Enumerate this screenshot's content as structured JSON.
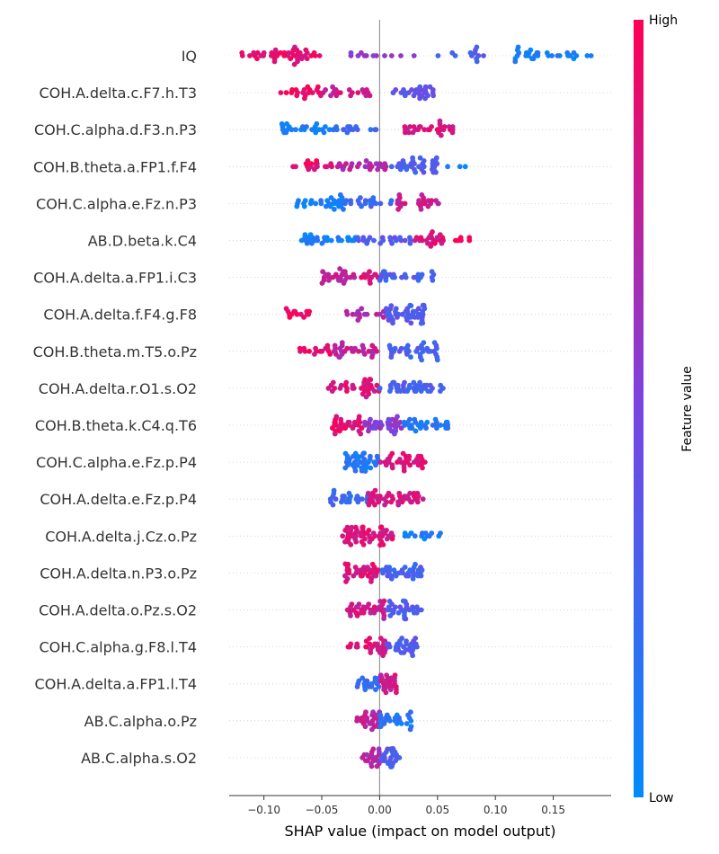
{
  "chart_data": {
    "type": "scatter",
    "subtype": "shap-beeswarm",
    "title": "",
    "xlabel": "SHAP value (impact on model output)",
    "xlim": [
      -0.13,
      0.2
    ],
    "xticks": [
      -0.1,
      -0.05,
      0.0,
      0.05,
      0.1,
      0.15
    ],
    "xtick_labels": [
      "−0.10",
      "−0.05",
      "0.00",
      "0.05",
      "0.10",
      "0.15"
    ],
    "colorbar": {
      "label": "Feature value",
      "high": "High",
      "low": "Low",
      "high_color": "#ff0052",
      "low_color": "#008bfb"
    },
    "zero_line_color": "#999999",
    "features": [
      {
        "name": "IQ",
        "ranges": [
          {
            "from": -0.12,
            "to": -0.05,
            "v": 0.9,
            "n": 45
          },
          {
            "from": -0.03,
            "to": 0.03,
            "v": 0.55,
            "n": 12
          },
          {
            "from": 0.05,
            "to": 0.1,
            "v": 0.3,
            "n": 12
          },
          {
            "from": 0.11,
            "to": 0.185,
            "v": 0.08,
            "n": 30
          }
        ]
      },
      {
        "name": "COH.A.delta.c.F7.h.T3",
        "ranges": [
          {
            "from": -0.087,
            "to": -0.05,
            "v": 0.92,
            "n": 20
          },
          {
            "from": -0.05,
            "to": 0.0,
            "v": 0.8,
            "n": 20
          },
          {
            "from": 0.01,
            "to": 0.047,
            "v": 0.4,
            "n": 28
          }
        ]
      },
      {
        "name": "COH.C.alpha.d.F3.n.P3",
        "ranges": [
          {
            "from": -0.085,
            "to": -0.04,
            "v": 0.1,
            "n": 25
          },
          {
            "from": -0.04,
            "to": 0.0,
            "v": 0.25,
            "n": 15
          },
          {
            "from": 0.015,
            "to": 0.065,
            "v": 0.85,
            "n": 30
          }
        ]
      },
      {
        "name": "COH.B.theta.a.FP1.f.F4",
        "ranges": [
          {
            "from": -0.075,
            "to": -0.04,
            "v": 0.92,
            "n": 18
          },
          {
            "from": -0.04,
            "to": 0.01,
            "v": 0.7,
            "n": 25
          },
          {
            "from": 0.01,
            "to": 0.05,
            "v": 0.3,
            "n": 35
          },
          {
            "from": 0.05,
            "to": 0.082,
            "v": 0.1,
            "n": 3
          }
        ]
      },
      {
        "name": "COH.C.alpha.e.Fz.n.P3",
        "ranges": [
          {
            "from": -0.075,
            "to": -0.03,
            "v": 0.1,
            "n": 28
          },
          {
            "from": -0.03,
            "to": 0.015,
            "v": 0.25,
            "n": 20
          },
          {
            "from": 0.015,
            "to": 0.055,
            "v": 0.8,
            "n": 25
          }
        ]
      },
      {
        "name": "AB.D.beta.k.C4",
        "ranges": [
          {
            "from": -0.068,
            "to": -0.02,
            "v": 0.1,
            "n": 28
          },
          {
            "from": -0.02,
            "to": 0.03,
            "v": 0.35,
            "n": 22
          },
          {
            "from": 0.03,
            "to": 0.055,
            "v": 0.85,
            "n": 22
          },
          {
            "from": 0.065,
            "to": 0.078,
            "v": 0.95,
            "n": 6
          }
        ]
      },
      {
        "name": "COH.A.delta.a.FP1.i.C3",
        "ranges": [
          {
            "from": -0.05,
            "to": -0.02,
            "v": 0.75,
            "n": 25
          },
          {
            "from": -0.02,
            "to": 0.0,
            "v": 0.85,
            "n": 12
          },
          {
            "from": 0.0,
            "to": 0.05,
            "v": 0.3,
            "n": 25
          }
        ]
      },
      {
        "name": "COH.A.delta.f.F4.g.F8",
        "ranges": [
          {
            "from": -0.085,
            "to": -0.06,
            "v": 0.95,
            "n": 14
          },
          {
            "from": -0.035,
            "to": 0.005,
            "v": 0.7,
            "n": 15
          },
          {
            "from": 0.005,
            "to": 0.04,
            "v": 0.35,
            "n": 45
          }
        ]
      },
      {
        "name": "COH.B.theta.m.T5.o.Pz",
        "ranges": [
          {
            "from": -0.07,
            "to": -0.04,
            "v": 0.92,
            "n": 15
          },
          {
            "from": -0.04,
            "to": 0.0,
            "v": 0.75,
            "n": 30
          },
          {
            "from": 0.005,
            "to": 0.05,
            "v": 0.3,
            "n": 35
          }
        ]
      },
      {
        "name": "COH.A.delta.r.O1.s.O2",
        "ranges": [
          {
            "from": -0.045,
            "to": 0.0,
            "v": 0.85,
            "n": 35
          },
          {
            "from": 0.0,
            "to": 0.055,
            "v": 0.3,
            "n": 40
          }
        ]
      },
      {
        "name": "COH.B.theta.k.C4.q.T6",
        "ranges": [
          {
            "from": -0.042,
            "to": -0.015,
            "v": 0.9,
            "n": 30
          },
          {
            "from": -0.015,
            "to": 0.02,
            "v": 0.55,
            "n": 35
          },
          {
            "from": 0.02,
            "to": 0.06,
            "v": 0.15,
            "n": 30
          }
        ]
      },
      {
        "name": "COH.C.alpha.e.Fz.p.P4",
        "ranges": [
          {
            "from": -0.03,
            "to": 0.0,
            "v": 0.15,
            "n": 40
          },
          {
            "from": 0.0,
            "to": 0.04,
            "v": 0.85,
            "n": 35
          }
        ]
      },
      {
        "name": "COH.A.delta.e.Fz.p.P4",
        "ranges": [
          {
            "from": -0.043,
            "to": -0.01,
            "v": 0.25,
            "n": 25
          },
          {
            "from": -0.01,
            "to": 0.038,
            "v": 0.82,
            "n": 45
          }
        ]
      },
      {
        "name": "COH.A.delta.j.Cz.o.Pz",
        "ranges": [
          {
            "from": -0.032,
            "to": 0.012,
            "v": 0.85,
            "n": 55
          },
          {
            "from": 0.02,
            "to": 0.053,
            "v": 0.1,
            "n": 15
          }
        ]
      },
      {
        "name": "COH.A.delta.n.P3.o.Pz",
        "ranges": [
          {
            "from": -0.03,
            "to": 0.0,
            "v": 0.85,
            "n": 35
          },
          {
            "from": 0.0,
            "to": 0.037,
            "v": 0.3,
            "n": 35
          }
        ]
      },
      {
        "name": "COH.A.delta.o.Pz.s.O2",
        "ranges": [
          {
            "from": -0.028,
            "to": 0.005,
            "v": 0.8,
            "n": 35
          },
          {
            "from": 0.005,
            "to": 0.038,
            "v": 0.3,
            "n": 30
          }
        ]
      },
      {
        "name": "COH.C.alpha.g.F8.l.T4",
        "ranges": [
          {
            "from": -0.028,
            "to": 0.005,
            "v": 0.85,
            "n": 30
          },
          {
            "from": 0.005,
            "to": 0.033,
            "v": 0.35,
            "n": 30
          }
        ]
      },
      {
        "name": "COH.A.delta.a.FP1.l.T4",
        "ranges": [
          {
            "from": -0.02,
            "to": 0.0,
            "v": 0.2,
            "n": 20
          },
          {
            "from": 0.0,
            "to": 0.015,
            "v": 0.8,
            "n": 25
          }
        ]
      },
      {
        "name": "AB.C.alpha.o.Pz",
        "ranges": [
          {
            "from": -0.02,
            "to": 0.0,
            "v": 0.75,
            "n": 25
          },
          {
            "from": 0.0,
            "to": 0.028,
            "v": 0.15,
            "n": 25
          }
        ]
      },
      {
        "name": "AB.C.alpha.s.O2",
        "ranges": [
          {
            "from": -0.015,
            "to": 0.0,
            "v": 0.7,
            "n": 20
          },
          {
            "from": 0.0,
            "to": 0.017,
            "v": 0.3,
            "n": 25
          }
        ]
      }
    ]
  }
}
